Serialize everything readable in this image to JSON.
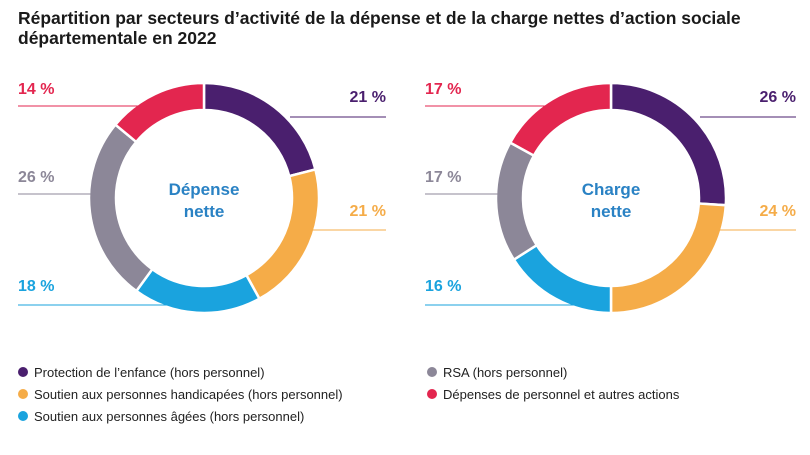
{
  "title": "Répartition par secteurs d’activité de la dépense et de la charge nettes d’action sociale départementale en 2022",
  "colors": {
    "protection": "#4a1f6e",
    "handicap": "#f5ac48",
    "ages": "#1aa3de",
    "rsa": "#8c8798",
    "personnel": "#e3264f",
    "center_text": "#2a82c4"
  },
  "legend": [
    {
      "label": "Protection de l’enfance (hors personnel)",
      "color": "#4a1f6e"
    },
    {
      "label": "Soutien aux personnes handicapées (hors personnel)",
      "color": "#f5ac48"
    },
    {
      "label": "Soutien aux personnes âgées (hors personnel)",
      "color": "#1aa3de"
    },
    {
      "label": "RSA (hors personnel)",
      "color": "#8c8798"
    },
    {
      "label": "Dépenses de personnel et autres actions",
      "color": "#e3264f"
    }
  ],
  "chart_data": [
    {
      "type": "pie",
      "center_label_lines": [
        "Dépense",
        "nette"
      ],
      "categories": [
        "Protection de l’enfance (hors personnel)",
        "Soutien aux personnes handicapées (hors personnel)",
        "Soutien aux personnes âgées (hors personnel)",
        "RSA (hors personnel)",
        "Dépenses de personnel et autres actions"
      ],
      "values": [
        21,
        21,
        18,
        26,
        14
      ],
      "labels": [
        "21 %",
        "21 %",
        "18 %",
        "26 %",
        "14 %"
      ]
    },
    {
      "type": "pie",
      "center_label_lines": [
        "Charge",
        "nette"
      ],
      "categories": [
        "Protection de l’enfance (hors personnel)",
        "Soutien aux personnes handicapées (hors personnel)",
        "Soutien aux personnes âgées (hors personnel)",
        "RSA (hors personnel)",
        "Dépenses de personnel et autres actions"
      ],
      "values": [
        26,
        24,
        16,
        17,
        17
      ],
      "labels": [
        "26 %",
        "24 %",
        "16 %",
        "17 %",
        "17 %"
      ]
    }
  ]
}
